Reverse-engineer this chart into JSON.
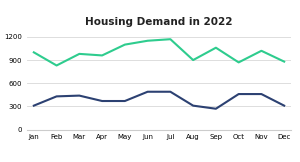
{
  "title": "Housing Demand in 2022",
  "months": [
    "Jan",
    "Feb",
    "Mar",
    "Apr",
    "May",
    "Jun",
    "Jul",
    "Aug",
    "Sep",
    "Oct",
    "Nov",
    "Dec"
  ],
  "calabarzon": [
    1000,
    830,
    980,
    960,
    1100,
    1150,
    1170,
    900,
    1060,
    870,
    1020,
    880
  ],
  "central_luzon": [
    310,
    430,
    440,
    370,
    370,
    490,
    490,
    310,
    270,
    460,
    460,
    310
  ],
  "calabarzon_color": "#2ecc8e",
  "central_luzon_color": "#2c4172",
  "ylim": [
    0,
    1300
  ],
  "yticks": [
    0,
    300,
    600,
    900,
    1200
  ],
  "bg_color": "#ffffff",
  "grid_color": "#d8d8d8",
  "title_fontsize": 7.5,
  "legend_fontsize": 5.5,
  "tick_fontsize": 5.0,
  "line_width": 1.5
}
